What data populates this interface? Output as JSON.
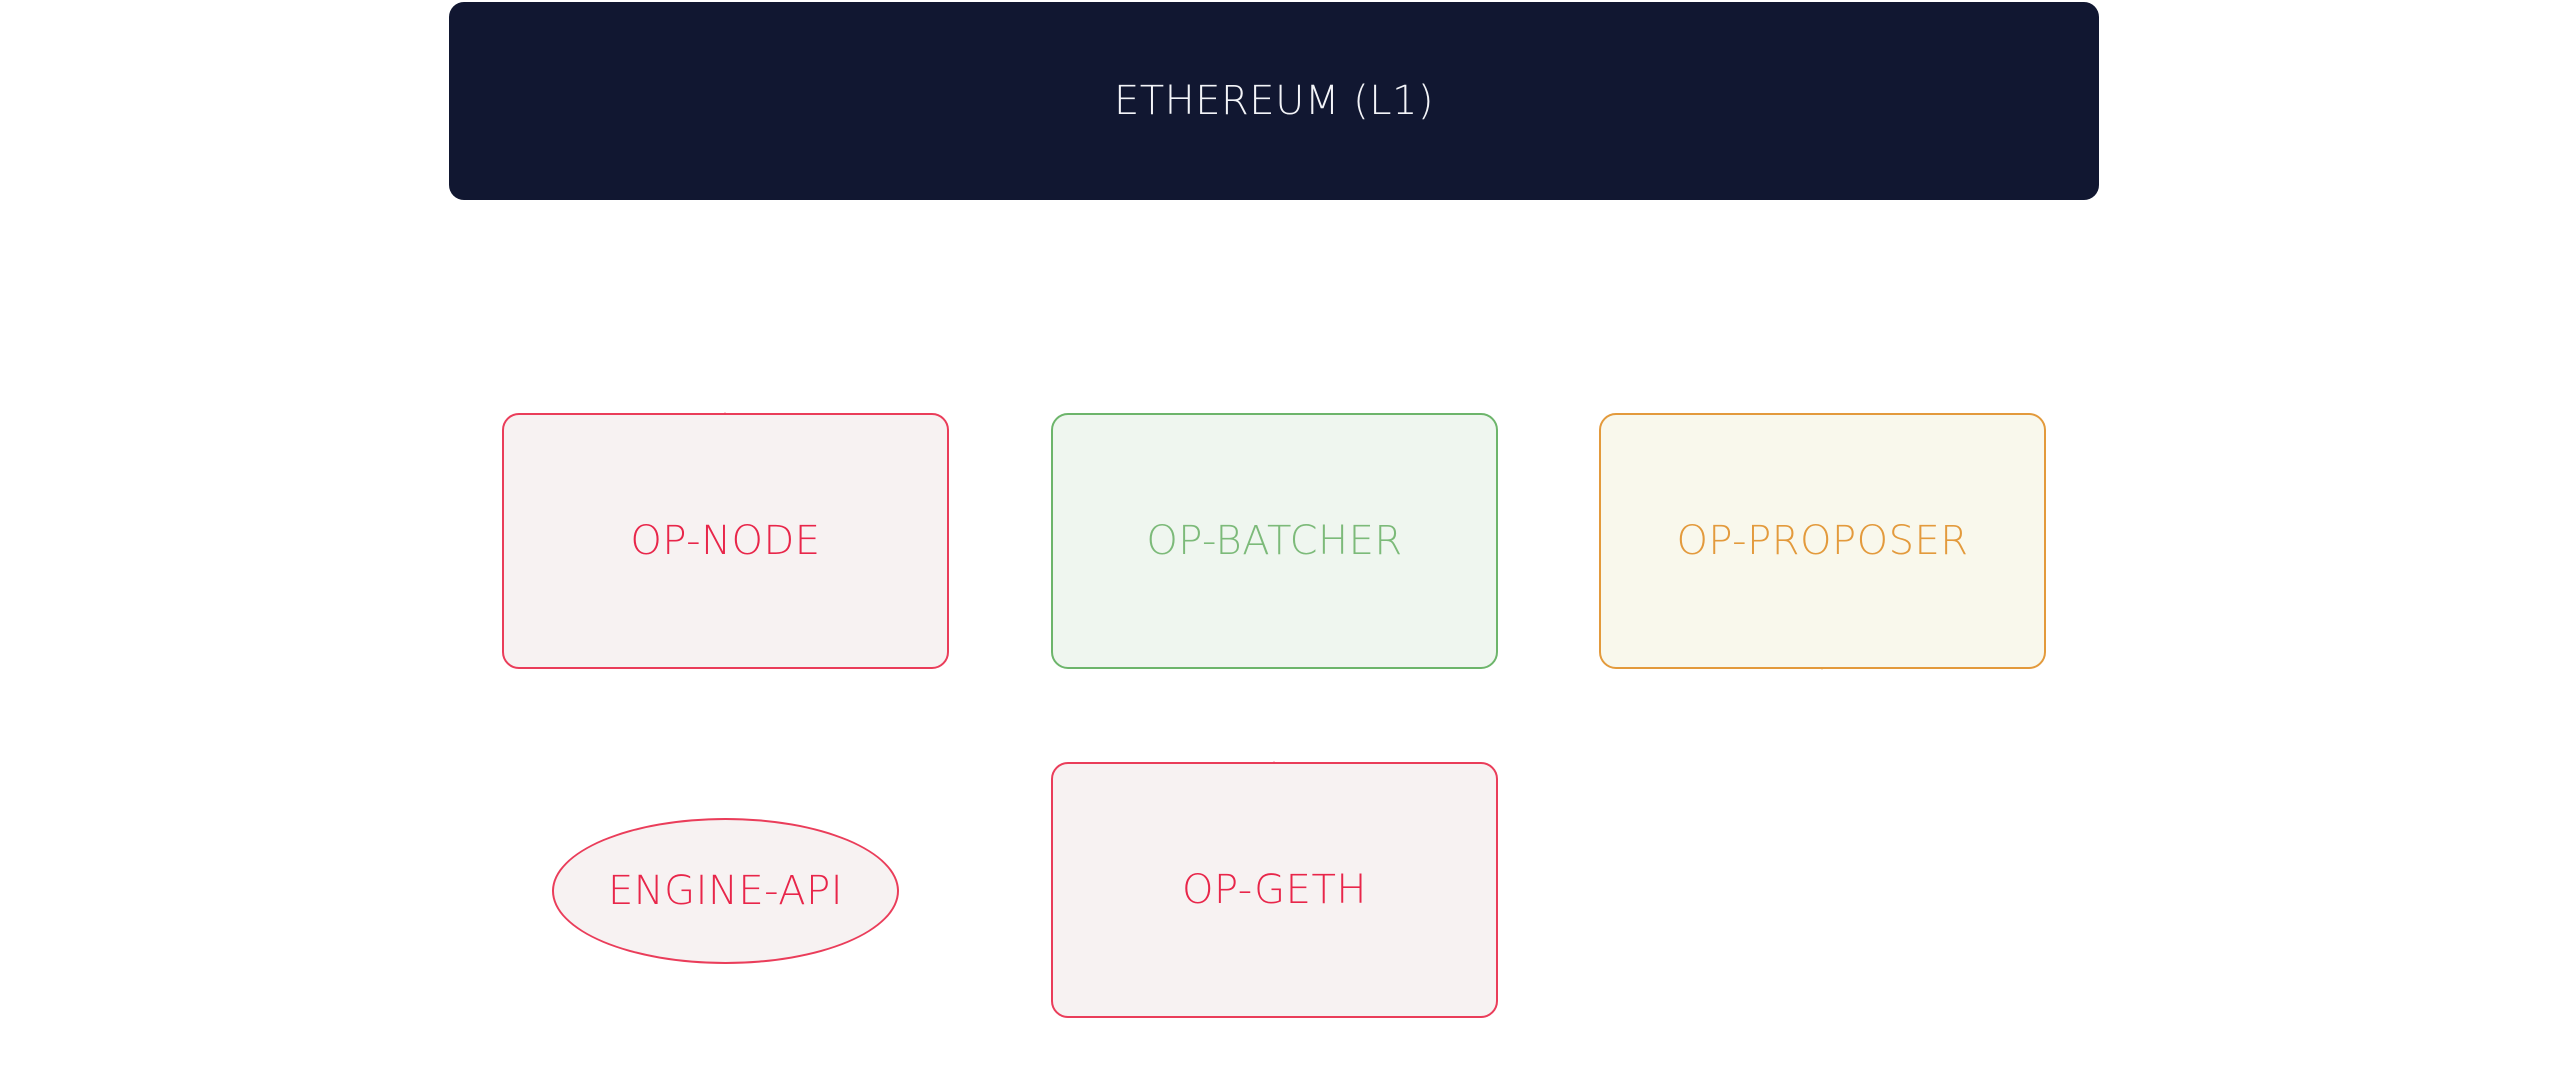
{
  "diagram": {
    "nodes": [
      {
        "id": "ethereum",
        "label": "ETHEREUM (L1)",
        "color": "#111731",
        "text_color": "#f3f4f8"
      },
      {
        "id": "op-node",
        "label": "OP-NODE",
        "color": "#ea3d5a",
        "fill": "#f7f2f2"
      },
      {
        "id": "op-batcher",
        "label": "OP-BATCHER",
        "color": "#6db56b",
        "fill": "#eff6ef"
      },
      {
        "id": "op-proposer",
        "label": "OP-PROPOSER",
        "color": "#e39a3c",
        "fill": "#f9f8ec"
      },
      {
        "id": "engine-api",
        "label": "ENGINE-API",
        "color": "#ea3d5a",
        "fill": "#f7f2f2",
        "shape": "ellipse"
      },
      {
        "id": "op-geth",
        "label": "OP-GETH",
        "color": "#ea3d5a",
        "fill": "#f7f2f2"
      }
    ]
  }
}
